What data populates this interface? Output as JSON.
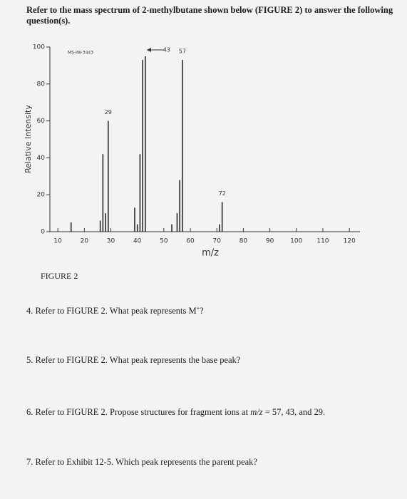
{
  "header": {
    "text": "Refer to the mass spectrum of 2-methylbutane shown below (FIGURE 2) to answer the following question(s)."
  },
  "chart_data": {
    "type": "bar",
    "title": "MS-IW-3443",
    "x_label": "m/z",
    "y_label": "Relative Intensity",
    "x": [
      15,
      26,
      27,
      28,
      29,
      39,
      40,
      41,
      42,
      43,
      53,
      55,
      56,
      57,
      71,
      72
    ],
    "values": [
      5,
      6,
      42,
      10,
      60,
      13,
      4,
      42,
      93,
      95,
      4,
      10,
      28,
      93,
      4,
      16
    ],
    "color": "#2a2a2a",
    "xlim": [
      7,
      124
    ],
    "xticks": [
      10,
      20,
      30,
      40,
      50,
      60,
      70,
      80,
      90,
      100,
      110,
      120
    ],
    "ylim": [
      0,
      100
    ],
    "yticks": [
      0,
      20,
      40,
      60,
      80,
      100
    ],
    "annotations": [
      {
        "text": "43",
        "x": 43
      },
      {
        "text": "57",
        "x": 57
      },
      {
        "text": "29",
        "x": 29
      },
      {
        "text": "72",
        "x": 72
      }
    ]
  },
  "caption": "FIGURE 2",
  "questions": [
    {
      "text": "4. Refer to FIGURE 2. What peak represents M",
      "sup": "+",
      "end": "?"
    },
    {
      "text": "5. Refer to FIGURE 2. What peak represents the base peak?"
    },
    {
      "text": "6. Refer to FIGURE 2. Propose structures for fragment ions at ",
      "italic": "m/z",
      "end": " = 57, 43, and 29."
    },
    {
      "text": "7. Refer to Exhibit 12-5. Which peak represents the parent peak?"
    }
  ]
}
